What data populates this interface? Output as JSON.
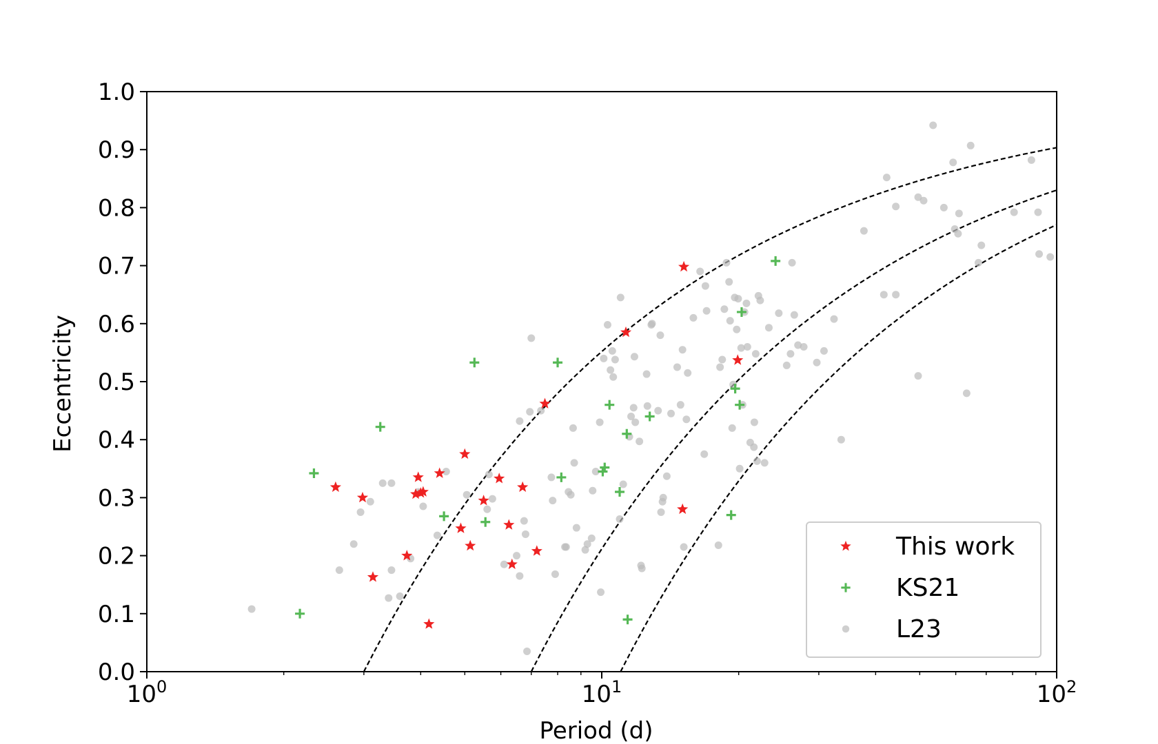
{
  "chart_data": {
    "type": "scatter",
    "title": "",
    "xlabel": "Period (d)",
    "ylabel": "Eccentricity",
    "xscale": "log",
    "xlim": [
      1,
      100
    ],
    "ylim": [
      0,
      1.0
    ],
    "x_ticks": [
      {
        "value": 1,
        "base": "10",
        "exp": "0"
      },
      {
        "value": 10,
        "base": "10",
        "exp": "1"
      },
      {
        "value": 100,
        "base": "10",
        "exp": "2"
      }
    ],
    "y_ticks": [
      {
        "value": 0.0,
        "label": "0.0"
      },
      {
        "value": 0.1,
        "label": "0.1"
      },
      {
        "value": 0.2,
        "label": "0.2"
      },
      {
        "value": 0.3,
        "label": "0.3"
      },
      {
        "value": 0.4,
        "label": "0.4"
      },
      {
        "value": 0.5,
        "label": "0.5"
      },
      {
        "value": 0.6,
        "label": "0.6"
      },
      {
        "value": 0.7,
        "label": "0.7"
      },
      {
        "value": 0.8,
        "label": "0.8"
      },
      {
        "value": 0.9,
        "label": "0.9"
      },
      {
        "value": 1.0,
        "label": "1.0"
      }
    ],
    "legend_position": "lower-right",
    "curves": [
      {
        "name": "P_cut 3 d",
        "p0": 3.0,
        "style": "dashed",
        "color": "#000000"
      },
      {
        "name": "P_cut 7 d",
        "p0": 7.0,
        "style": "dashed",
        "color": "#000000"
      },
      {
        "name": "P_cut 11 d",
        "p0": 11.0,
        "style": "dashed",
        "color": "#000000"
      }
    ],
    "series": [
      {
        "name": "L23",
        "marker": "circle",
        "color": "#bbbbbb",
        "points": [
          [
            1.7,
            0.108
          ],
          [
            2.65,
            0.175
          ],
          [
            2.85,
            0.22
          ],
          [
            2.95,
            0.275
          ],
          [
            3.1,
            0.293
          ],
          [
            3.3,
            0.325
          ],
          [
            3.45,
            0.325
          ],
          [
            3.45,
            0.175
          ],
          [
            3.6,
            0.13
          ],
          [
            3.4,
            0.127
          ],
          [
            3.8,
            0.195
          ],
          [
            3.95,
            0.31
          ],
          [
            4.05,
            0.285
          ],
          [
            4.35,
            0.235
          ],
          [
            4.55,
            0.345
          ],
          [
            5.05,
            0.305
          ],
          [
            5.65,
            0.34
          ],
          [
            5.75,
            0.298
          ],
          [
            5.6,
            0.28
          ],
          [
            6.1,
            0.185
          ],
          [
            6.5,
            0.2
          ],
          [
            6.6,
            0.165
          ],
          [
            6.75,
            0.26
          ],
          [
            6.8,
            0.237
          ],
          [
            6.85,
            0.035
          ],
          [
            6.6,
            0.432
          ],
          [
            6.95,
            0.448
          ],
          [
            7.0,
            0.575
          ],
          [
            7.35,
            0.45
          ],
          [
            7.75,
            0.335
          ],
          [
            7.8,
            0.295
          ],
          [
            7.9,
            0.168
          ],
          [
            8.3,
            0.215
          ],
          [
            8.35,
            0.215
          ],
          [
            8.45,
            0.31
          ],
          [
            8.55,
            0.305
          ],
          [
            8.65,
            0.42
          ],
          [
            8.7,
            0.36
          ],
          [
            8.8,
            0.248
          ],
          [
            9.2,
            0.21
          ],
          [
            9.5,
            0.23
          ],
          [
            9.55,
            0.312
          ],
          [
            9.7,
            0.345
          ],
          [
            9.9,
            0.43
          ],
          [
            9.95,
            0.137
          ],
          [
            10.1,
            0.54
          ],
          [
            10.3,
            0.598
          ],
          [
            10.45,
            0.52
          ],
          [
            10.55,
            0.553
          ],
          [
            10.6,
            0.508
          ],
          [
            10.7,
            0.538
          ],
          [
            10.95,
            0.263
          ],
          [
            11.0,
            0.645
          ],
          [
            11.15,
            0.323
          ],
          [
            11.5,
            0.405
          ],
          [
            11.6,
            0.44
          ],
          [
            11.8,
            0.543
          ],
          [
            11.85,
            0.43
          ],
          [
            12.1,
            0.397
          ],
          [
            12.2,
            0.183
          ],
          [
            12.25,
            0.178
          ],
          [
            12.55,
            0.513
          ],
          [
            12.6,
            0.458
          ],
          [
            12.85,
            0.598
          ],
          [
            13.3,
            0.45
          ],
          [
            13.45,
            0.58
          ],
          [
            13.5,
            0.275
          ],
          [
            13.6,
            0.293
          ],
          [
            13.9,
            0.337
          ],
          [
            14.2,
            0.445
          ],
          [
            14.65,
            0.525
          ],
          [
            15.05,
            0.555
          ],
          [
            15.15,
            0.215
          ],
          [
            15.35,
            0.435
          ],
          [
            15.45,
            0.515
          ],
          [
            15.9,
            0.61
          ],
          [
            16.45,
            0.69
          ],
          [
            16.8,
            0.375
          ],
          [
            16.9,
            0.665
          ],
          [
            17.0,
            0.622
          ],
          [
            18.05,
            0.218
          ],
          [
            18.2,
            0.525
          ],
          [
            18.4,
            0.538
          ],
          [
            18.6,
            0.625
          ],
          [
            18.8,
            0.705
          ],
          [
            19.05,
            0.672
          ],
          [
            19.15,
            0.605
          ],
          [
            19.35,
            0.42
          ],
          [
            19.45,
            0.495
          ],
          [
            19.6,
            0.645
          ],
          [
            19.8,
            0.59
          ],
          [
            19.95,
            0.643
          ],
          [
            20.1,
            0.35
          ],
          [
            20.25,
            0.558
          ],
          [
            20.4,
            0.46
          ],
          [
            20.6,
            0.62
          ],
          [
            20.8,
            0.635
          ],
          [
            21.2,
            0.395
          ],
          [
            21.6,
            0.387
          ],
          [
            21.65,
            0.43
          ],
          [
            21.8,
            0.548
          ],
          [
            21.95,
            0.363
          ],
          [
            22.1,
            0.648
          ],
          [
            22.3,
            0.64
          ],
          [
            22.8,
            0.36
          ],
          [
            23.3,
            0.593
          ],
          [
            24.5,
            0.618
          ],
          [
            25.5,
            0.528
          ],
          [
            26.0,
            0.548
          ],
          [
            26.2,
            0.705
          ],
          [
            26.5,
            0.615
          ],
          [
            27.0,
            0.563
          ],
          [
            27.8,
            0.56
          ],
          [
            29.7,
            0.533
          ],
          [
            30.8,
            0.553
          ],
          [
            32.4,
            0.608
          ],
          [
            33.6,
            0.4
          ],
          [
            37.7,
            0.76
          ],
          [
            41.7,
            0.65
          ],
          [
            42.3,
            0.852
          ],
          [
            44.3,
            0.65
          ],
          [
            44.3,
            0.802
          ],
          [
            49.6,
            0.51
          ],
          [
            49.6,
            0.818
          ],
          [
            51.0,
            0.812
          ],
          [
            53.5,
            0.942
          ],
          [
            56.5,
            0.8
          ],
          [
            59.2,
            0.878
          ],
          [
            59.7,
            0.763
          ],
          [
            60.7,
            0.755
          ],
          [
            61.0,
            0.79
          ],
          [
            63.4,
            0.48
          ],
          [
            64.7,
            0.907
          ],
          [
            67.3,
            0.705
          ],
          [
            68.3,
            0.735
          ],
          [
            80.6,
            0.792
          ],
          [
            88.0,
            0.882
          ],
          [
            91.0,
            0.792
          ],
          [
            91.5,
            0.72
          ],
          [
            96.8,
            0.715
          ],
          [
            9.3,
            0.22
          ],
          [
            11.75,
            0.455
          ],
          [
            12.9,
            0.6
          ],
          [
            13.65,
            0.3
          ],
          [
            14.9,
            0.46
          ],
          [
            20.9,
            0.56
          ]
        ]
      },
      {
        "name": "KS21",
        "marker": "plus",
        "color": "#55b855",
        "points": [
          [
            2.17,
            0.1
          ],
          [
            2.33,
            0.342
          ],
          [
            3.26,
            0.422
          ],
          [
            4.5,
            0.268
          ],
          [
            5.25,
            0.533
          ],
          [
            5.55,
            0.258
          ],
          [
            8.0,
            0.533
          ],
          [
            8.15,
            0.335
          ],
          [
            10.05,
            0.345
          ],
          [
            10.15,
            0.352
          ],
          [
            10.4,
            0.46
          ],
          [
            10.95,
            0.31
          ],
          [
            11.35,
            0.41
          ],
          [
            11.4,
            0.09
          ],
          [
            12.75,
            0.44
          ],
          [
            19.25,
            0.27
          ],
          [
            19.65,
            0.488
          ],
          [
            20.1,
            0.46
          ],
          [
            20.3,
            0.62
          ],
          [
            24.1,
            0.708
          ]
        ]
      },
      {
        "name": "This work",
        "marker": "star",
        "color": "#ee2222",
        "points": [
          [
            2.6,
            0.318
          ],
          [
            2.98,
            0.3
          ],
          [
            3.14,
            0.163
          ],
          [
            3.73,
            0.2
          ],
          [
            3.9,
            0.306
          ],
          [
            3.95,
            0.335
          ],
          [
            4.0,
            0.308
          ],
          [
            4.05,
            0.31
          ],
          [
            4.17,
            0.082
          ],
          [
            4.4,
            0.342
          ],
          [
            4.9,
            0.247
          ],
          [
            5.0,
            0.375
          ],
          [
            5.14,
            0.217
          ],
          [
            5.5,
            0.295
          ],
          [
            5.95,
            0.333
          ],
          [
            6.25,
            0.253
          ],
          [
            6.35,
            0.185
          ],
          [
            6.7,
            0.318
          ],
          [
            7.2,
            0.208
          ],
          [
            7.5,
            0.462
          ],
          [
            11.3,
            0.585
          ],
          [
            15.05,
            0.28
          ],
          [
            15.15,
            0.698
          ],
          [
            19.9,
            0.537
          ]
        ]
      }
    ],
    "legend": [
      {
        "label": "This work",
        "marker": "star",
        "color": "#ee2222"
      },
      {
        "label": "KS21",
        "marker": "plus",
        "color": "#55b855"
      },
      {
        "label": "L23",
        "marker": "circle",
        "color": "#bbbbbb"
      }
    ]
  }
}
